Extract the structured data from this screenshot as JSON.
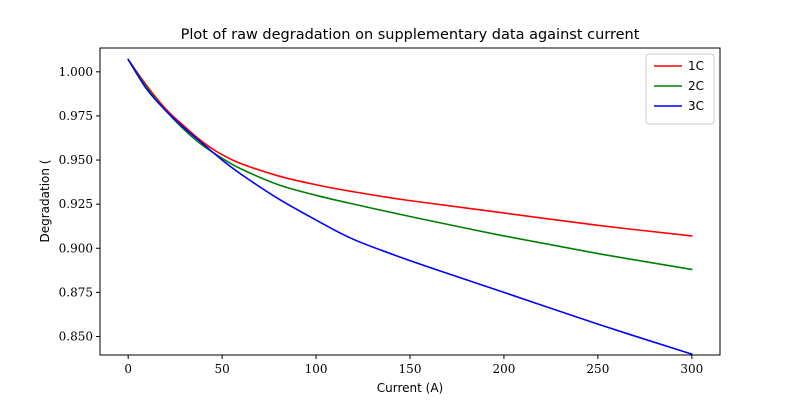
{
  "chart_data": {
    "type": "line",
    "title": "Plot of raw degradation on supplementary data against current",
    "xlabel": "Current (A)",
    "ylabel": "Degradation (",
    "xlim": [
      -15,
      315
    ],
    "ylim": [
      0.8395,
      1.0135
    ],
    "xticks": [
      0,
      50,
      100,
      150,
      200,
      250,
      300
    ],
    "xtick_labels": [
      "0",
      "50",
      "100",
      "150",
      "200",
      "250",
      "300"
    ],
    "yticks": [
      0.85,
      0.875,
      0.9,
      0.925,
      0.95,
      0.975,
      1.0
    ],
    "ytick_labels": [
      "0.850",
      "0.875",
      "0.900",
      "0.925",
      "0.950",
      "0.975",
      "1.000"
    ],
    "grid": false,
    "legend_position": "top-right",
    "series": [
      {
        "name": "1C",
        "color": "#ff0000",
        "x": [
          0,
          10,
          20,
          30,
          40,
          50,
          60,
          80,
          100,
          120,
          150,
          200,
          250,
          300
        ],
        "y": [
          1.007,
          0.992,
          0.979,
          0.969,
          0.96,
          0.953,
          0.948,
          0.941,
          0.936,
          0.932,
          0.927,
          0.92,
          0.913,
          0.907
        ]
      },
      {
        "name": "2C",
        "color": "#008000",
        "x": [
          0,
          10,
          20,
          30,
          40,
          50,
          60,
          80,
          100,
          120,
          150,
          200,
          250,
          300
        ],
        "y": [
          1.007,
          0.991,
          0.978,
          0.967,
          0.958,
          0.951,
          0.945,
          0.936,
          0.93,
          0.925,
          0.918,
          0.907,
          0.897,
          0.888
        ]
      },
      {
        "name": "3C",
        "color": "#0000ff",
        "x": [
          0,
          10,
          20,
          30,
          40,
          50,
          60,
          80,
          100,
          120,
          150,
          200,
          250,
          300
        ],
        "y": [
          1.007,
          0.99,
          0.978,
          0.968,
          0.959,
          0.95,
          0.942,
          0.928,
          0.916,
          0.905,
          0.893,
          0.875,
          0.857,
          0.84
        ]
      }
    ]
  }
}
